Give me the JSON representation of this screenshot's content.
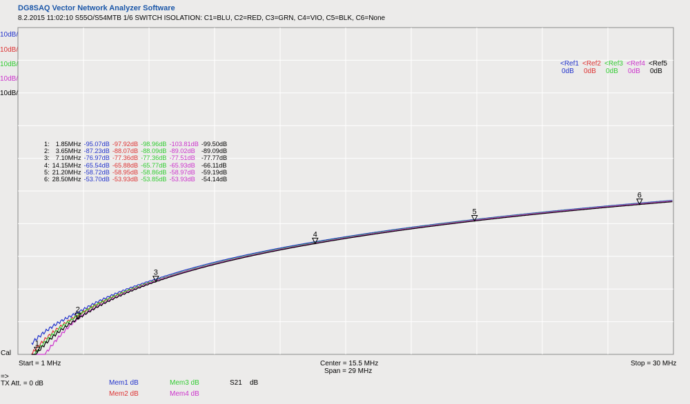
{
  "header": {
    "app_title": "DG8SAQ Vector Network Analyzer Software",
    "subtitle": "8.2.2015   11:02:10    S55O/S54MTB 1/6 SWITCH ISOLATION: C1=BLU, C2=RED, C3=GRN, C4=VIO, C5=BLK, C6=None"
  },
  "colors": {
    "trace1": "#2233cc",
    "trace2": "#dd3333",
    "trace3": "#33cc33",
    "trace4": "#cc33cc",
    "trace5": "#000000",
    "title": "#1a56a8",
    "grid": "#ffffff"
  },
  "scales": [
    {
      "label": "10dB/",
      "color": "#2233cc"
    },
    {
      "label": "10dB/",
      "color": "#dd3333"
    },
    {
      "label": "10dB/",
      "color": "#33cc33"
    },
    {
      "label": "10dB/",
      "color": "#cc33cc"
    },
    {
      "label": "10dB/",
      "color": "#000000"
    }
  ],
  "refs": [
    {
      "name": "<Ref1",
      "value": "0dB",
      "color": "#2233cc"
    },
    {
      "name": "<Ref2",
      "value": "0dB",
      "color": "#dd3333"
    },
    {
      "name": "<Ref3",
      "value": "0dB",
      "color": "#33cc33"
    },
    {
      "name": "<Ref4",
      "value": "0dB",
      "color": "#cc33cc"
    },
    {
      "name": "<Ref5",
      "value": "0dB",
      "color": "#000000"
    }
  ],
  "marker_table": [
    {
      "idx": "1:",
      "freq": "1.85MHz",
      "v": [
        "-95.07dB",
        "-97.92dB",
        "-98.96dB",
        "-103.81dB",
        "-99.50dB"
      ]
    },
    {
      "idx": "2:",
      "freq": "3.65MHz",
      "v": [
        "-87.23dB",
        "-88.07dB",
        "-88.09dB",
        "-89.02dB",
        "-89.09dB"
      ]
    },
    {
      "idx": "3:",
      "freq": "7.10MHz",
      "v": [
        "-76.97dB",
        "-77.36dB",
        "-77.36dB",
        "-77.51dB",
        "-77.77dB"
      ]
    },
    {
      "idx": "4:",
      "freq": "14.15MHz",
      "v": [
        "-65.54dB",
        "-65.88dB",
        "-65.77dB",
        "-65.93dB",
        "-66.11dB"
      ]
    },
    {
      "idx": "5:",
      "freq": "21.20MHz",
      "v": [
        "-58.72dB",
        "-58.95dB",
        "-58.86dB",
        "-58.97dB",
        "-59.19dB"
      ]
    },
    {
      "idx": "6:",
      "freq": "28.50MHz",
      "v": [
        "-53.70dB",
        "-53.93dB",
        "-53.85dB",
        "-53.93dB",
        "-54.14dB"
      ]
    }
  ],
  "footer": {
    "cal": "Cal",
    "start": "Start = 1 MHz",
    "center": "Center = 15.5 MHz",
    "span": "Span = 29 MHz",
    "stop": "Stop = 30 MHz",
    "arrow": "=>",
    "tx_att": "TX Att.  = 0 dB",
    "mem1": "Mem1 dB",
    "mem2": "Mem2 dB",
    "mem3": "Mem3 dB",
    "mem4": "Mem4 dB",
    "s21": "S21",
    "s21_unit": "dB"
  },
  "chart_data": {
    "type": "line",
    "x_range_mhz": [
      1,
      30
    ],
    "y_range_db": [
      -100,
      0
    ],
    "grid": true,
    "x_divisions": 10,
    "y_divisions": 10,
    "x": [
      1.85,
      3.65,
      7.1,
      14.15,
      21.2,
      28.5
    ],
    "series": [
      {
        "name": "C1=BLU",
        "color": "#2233cc",
        "values": [
          -95.07,
          -87.23,
          -76.97,
          -65.54,
          -58.72,
          -53.7
        ]
      },
      {
        "name": "C2=RED",
        "color": "#dd3333",
        "values": [
          -97.92,
          -88.07,
          -77.36,
          -65.88,
          -58.95,
          -53.93
        ]
      },
      {
        "name": "C3=GRN",
        "color": "#33cc33",
        "values": [
          -98.96,
          -88.09,
          -77.36,
          -65.77,
          -58.86,
          -53.85
        ]
      },
      {
        "name": "C4=VIO",
        "color": "#cc33cc",
        "values": [
          -103.81,
          -89.02,
          -77.51,
          -65.93,
          -58.97,
          -53.93
        ]
      },
      {
        "name": "C5=BLK",
        "color": "#000000",
        "values": [
          -99.5,
          -89.09,
          -77.77,
          -66.11,
          -59.19,
          -54.14
        ]
      }
    ],
    "markers": [
      "1",
      "2",
      "3",
      "4",
      "5",
      "6"
    ]
  }
}
